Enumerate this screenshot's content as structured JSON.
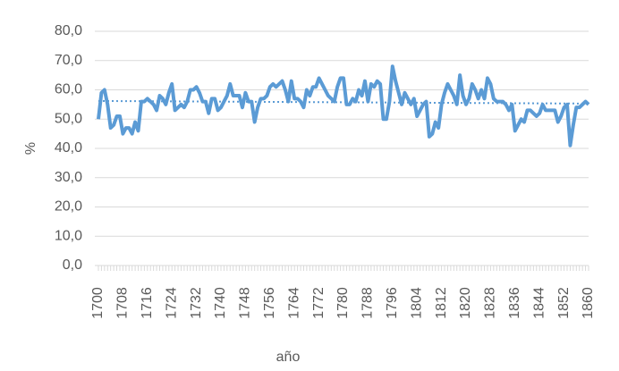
{
  "chart_data": {
    "type": "line",
    "ylabel": "%",
    "xlabel": "año",
    "x": [
      1700,
      1701,
      1702,
      1703,
      1704,
      1705,
      1706,
      1707,
      1708,
      1709,
      1710,
      1711,
      1712,
      1713,
      1714,
      1715,
      1716,
      1717,
      1718,
      1719,
      1720,
      1721,
      1722,
      1723,
      1724,
      1725,
      1726,
      1727,
      1728,
      1729,
      1730,
      1731,
      1732,
      1733,
      1734,
      1735,
      1736,
      1737,
      1738,
      1739,
      1740,
      1741,
      1742,
      1743,
      1744,
      1745,
      1746,
      1747,
      1748,
      1749,
      1750,
      1751,
      1752,
      1753,
      1754,
      1755,
      1756,
      1757,
      1758,
      1759,
      1760,
      1761,
      1762,
      1763,
      1764,
      1765,
      1766,
      1767,
      1768,
      1769,
      1770,
      1771,
      1772,
      1773,
      1774,
      1775,
      1776,
      1777,
      1778,
      1779,
      1780,
      1781,
      1782,
      1783,
      1784,
      1785,
      1786,
      1787,
      1788,
      1789,
      1790,
      1791,
      1792,
      1793,
      1794,
      1795,
      1796,
      1797,
      1798,
      1799,
      1800,
      1801,
      1802,
      1803,
      1804,
      1805,
      1806,
      1807,
      1808,
      1809,
      1810,
      1811,
      1812,
      1813,
      1814,
      1815,
      1816,
      1817,
      1818,
      1819,
      1820,
      1821,
      1822,
      1823,
      1824,
      1825,
      1826,
      1827,
      1828,
      1829,
      1830,
      1831,
      1832,
      1833,
      1834,
      1835,
      1836,
      1837,
      1838,
      1839,
      1840,
      1841,
      1842,
      1843,
      1844,
      1845,
      1846,
      1847,
      1848,
      1849,
      1850,
      1851,
      1852,
      1853,
      1854,
      1855,
      1856,
      1857,
      1858,
      1859,
      1860
    ],
    "series": [
      {
        "color": "#5b9bd5",
        "values": [
          50,
          59,
          60,
          55,
          47,
          48,
          51,
          51,
          45,
          47,
          47,
          45,
          49,
          46,
          56,
          56,
          57,
          56,
          55,
          53,
          58,
          57,
          55,
          59,
          62,
          53,
          54,
          55,
          54,
          56,
          60,
          60,
          61,
          59,
          56,
          56,
          52,
          57,
          57,
          53,
          54,
          56,
          58,
          62,
          58,
          58,
          58,
          54,
          59,
          56,
          56,
          49,
          54,
          57,
          57,
          58,
          61,
          62,
          61,
          62,
          63,
          60,
          56,
          63,
          57,
          57,
          56,
          54,
          60,
          58,
          61,
          61,
          64,
          62,
          60,
          58,
          57,
          56,
          61,
          64,
          64,
          55,
          55,
          57,
          56,
          60,
          58,
          63,
          56,
          62,
          61,
          63,
          62,
          50,
          50,
          56,
          68,
          63,
          59,
          55,
          59,
          57,
          55,
          57,
          51,
          53,
          55,
          56,
          44,
          45,
          49,
          47,
          55,
          59,
          62,
          60,
          58,
          55,
          65,
          58,
          55,
          57,
          62,
          60,
          57,
          60,
          57,
          64,
          62,
          57,
          56,
          56,
          56,
          55,
          53,
          55,
          46,
          48,
          50,
          49,
          53,
          53,
          52,
          51,
          52,
          55,
          53,
          53,
          53,
          53,
          49,
          51,
          54,
          55,
          41,
          48,
          54,
          54,
          55,
          56,
          55
        ]
      }
    ],
    "trendline": {
      "x": [
        1700,
        1860
      ],
      "values": [
        56.2,
        55.3
      ],
      "color": "#5b9bd5"
    },
    "xlim": [
      1700,
      1860
    ],
    "xticks": [
      1700,
      1708,
      1716,
      1724,
      1732,
      1740,
      1748,
      1756,
      1764,
      1772,
      1780,
      1788,
      1796,
      1804,
      1812,
      1820,
      1828,
      1836,
      1844,
      1852,
      1860
    ],
    "ylim": [
      0,
      80
    ],
    "yticks": [
      {
        "value": 0,
        "label": "0,0"
      },
      {
        "value": 10,
        "label": "10,0"
      },
      {
        "value": 20,
        "label": "20,0"
      },
      {
        "value": 30,
        "label": "30,0"
      },
      {
        "value": 40,
        "label": "40,0"
      },
      {
        "value": 50,
        "label": "50,0"
      },
      {
        "value": 60,
        "label": "60,0"
      },
      {
        "value": 70,
        "label": "70,0"
      },
      {
        "value": 80,
        "label": "80,0"
      }
    ],
    "grid": true
  }
}
